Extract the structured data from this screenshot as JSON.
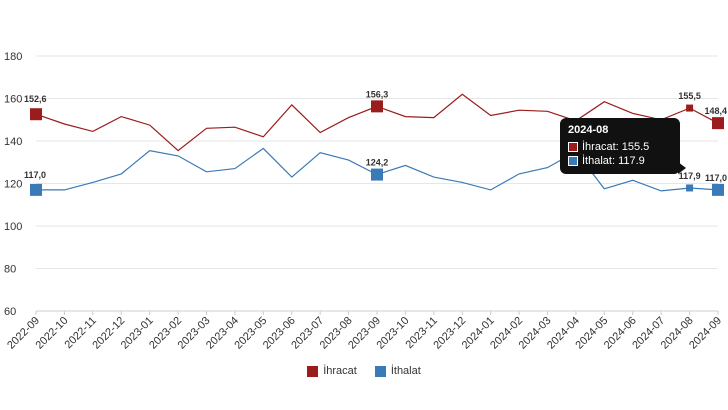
{
  "chart_data": {
    "type": "line",
    "x": [
      "2022-09",
      "2022-10",
      "2022-11",
      "2022-12",
      "2023-01",
      "2023-02",
      "2023-03",
      "2023-04",
      "2023-05",
      "2023-06",
      "2023-07",
      "2023-08",
      "2023-09",
      "2023-10",
      "2023-11",
      "2023-12",
      "2024-01",
      "2024-02",
      "2024-03",
      "2024-04",
      "2024-05",
      "2024-06",
      "2024-07",
      "2024-08",
      "2024-09"
    ],
    "ylim": [
      60,
      180
    ],
    "yticks": [
      "60",
      "80",
      "100",
      "120",
      "140",
      "160",
      "180"
    ],
    "grid": "horizontal",
    "legend": "bottom-center",
    "series": [
      {
        "name": "İhracat",
        "color": "#9b1c1c",
        "values": [
          152.6,
          148.0,
          144.5,
          151.5,
          147.5,
          135.5,
          146.0,
          146.5,
          142.0,
          157.0,
          144.0,
          151.0,
          156.3,
          151.5,
          151.0,
          162.0,
          152.0,
          154.5,
          154.0,
          149.5,
          158.5,
          153.0,
          150.0,
          155.5,
          148.4
        ],
        "labels": [
          {
            "index": 0,
            "text": "152,6"
          },
          {
            "index": 12,
            "text": "156,3"
          },
          {
            "index": 23,
            "text": "155,5"
          },
          {
            "index": 24,
            "text": "148,4"
          }
        ]
      },
      {
        "name": "İthalat",
        "color": "#3a7ab8",
        "values": [
          117.0,
          117.0,
          120.5,
          124.5,
          135.5,
          133.0,
          125.5,
          127.0,
          136.5,
          123.0,
          134.5,
          131.0,
          124.2,
          128.5,
          123.0,
          120.5,
          117.0,
          124.5,
          127.5,
          135.0,
          117.5,
          121.5,
          116.5,
          117.9,
          117.0
        ],
        "labels": [
          {
            "index": 0,
            "text": "117,0"
          },
          {
            "index": 12,
            "text": "124,2"
          },
          {
            "index": 23,
            "text": "117,9"
          },
          {
            "index": 24,
            "text": "117,0"
          }
        ]
      }
    ],
    "tooltip": {
      "index": 23,
      "title": "2024-08",
      "rows": [
        "İhracat: 155.5",
        "İthalat: 117.9"
      ]
    }
  }
}
